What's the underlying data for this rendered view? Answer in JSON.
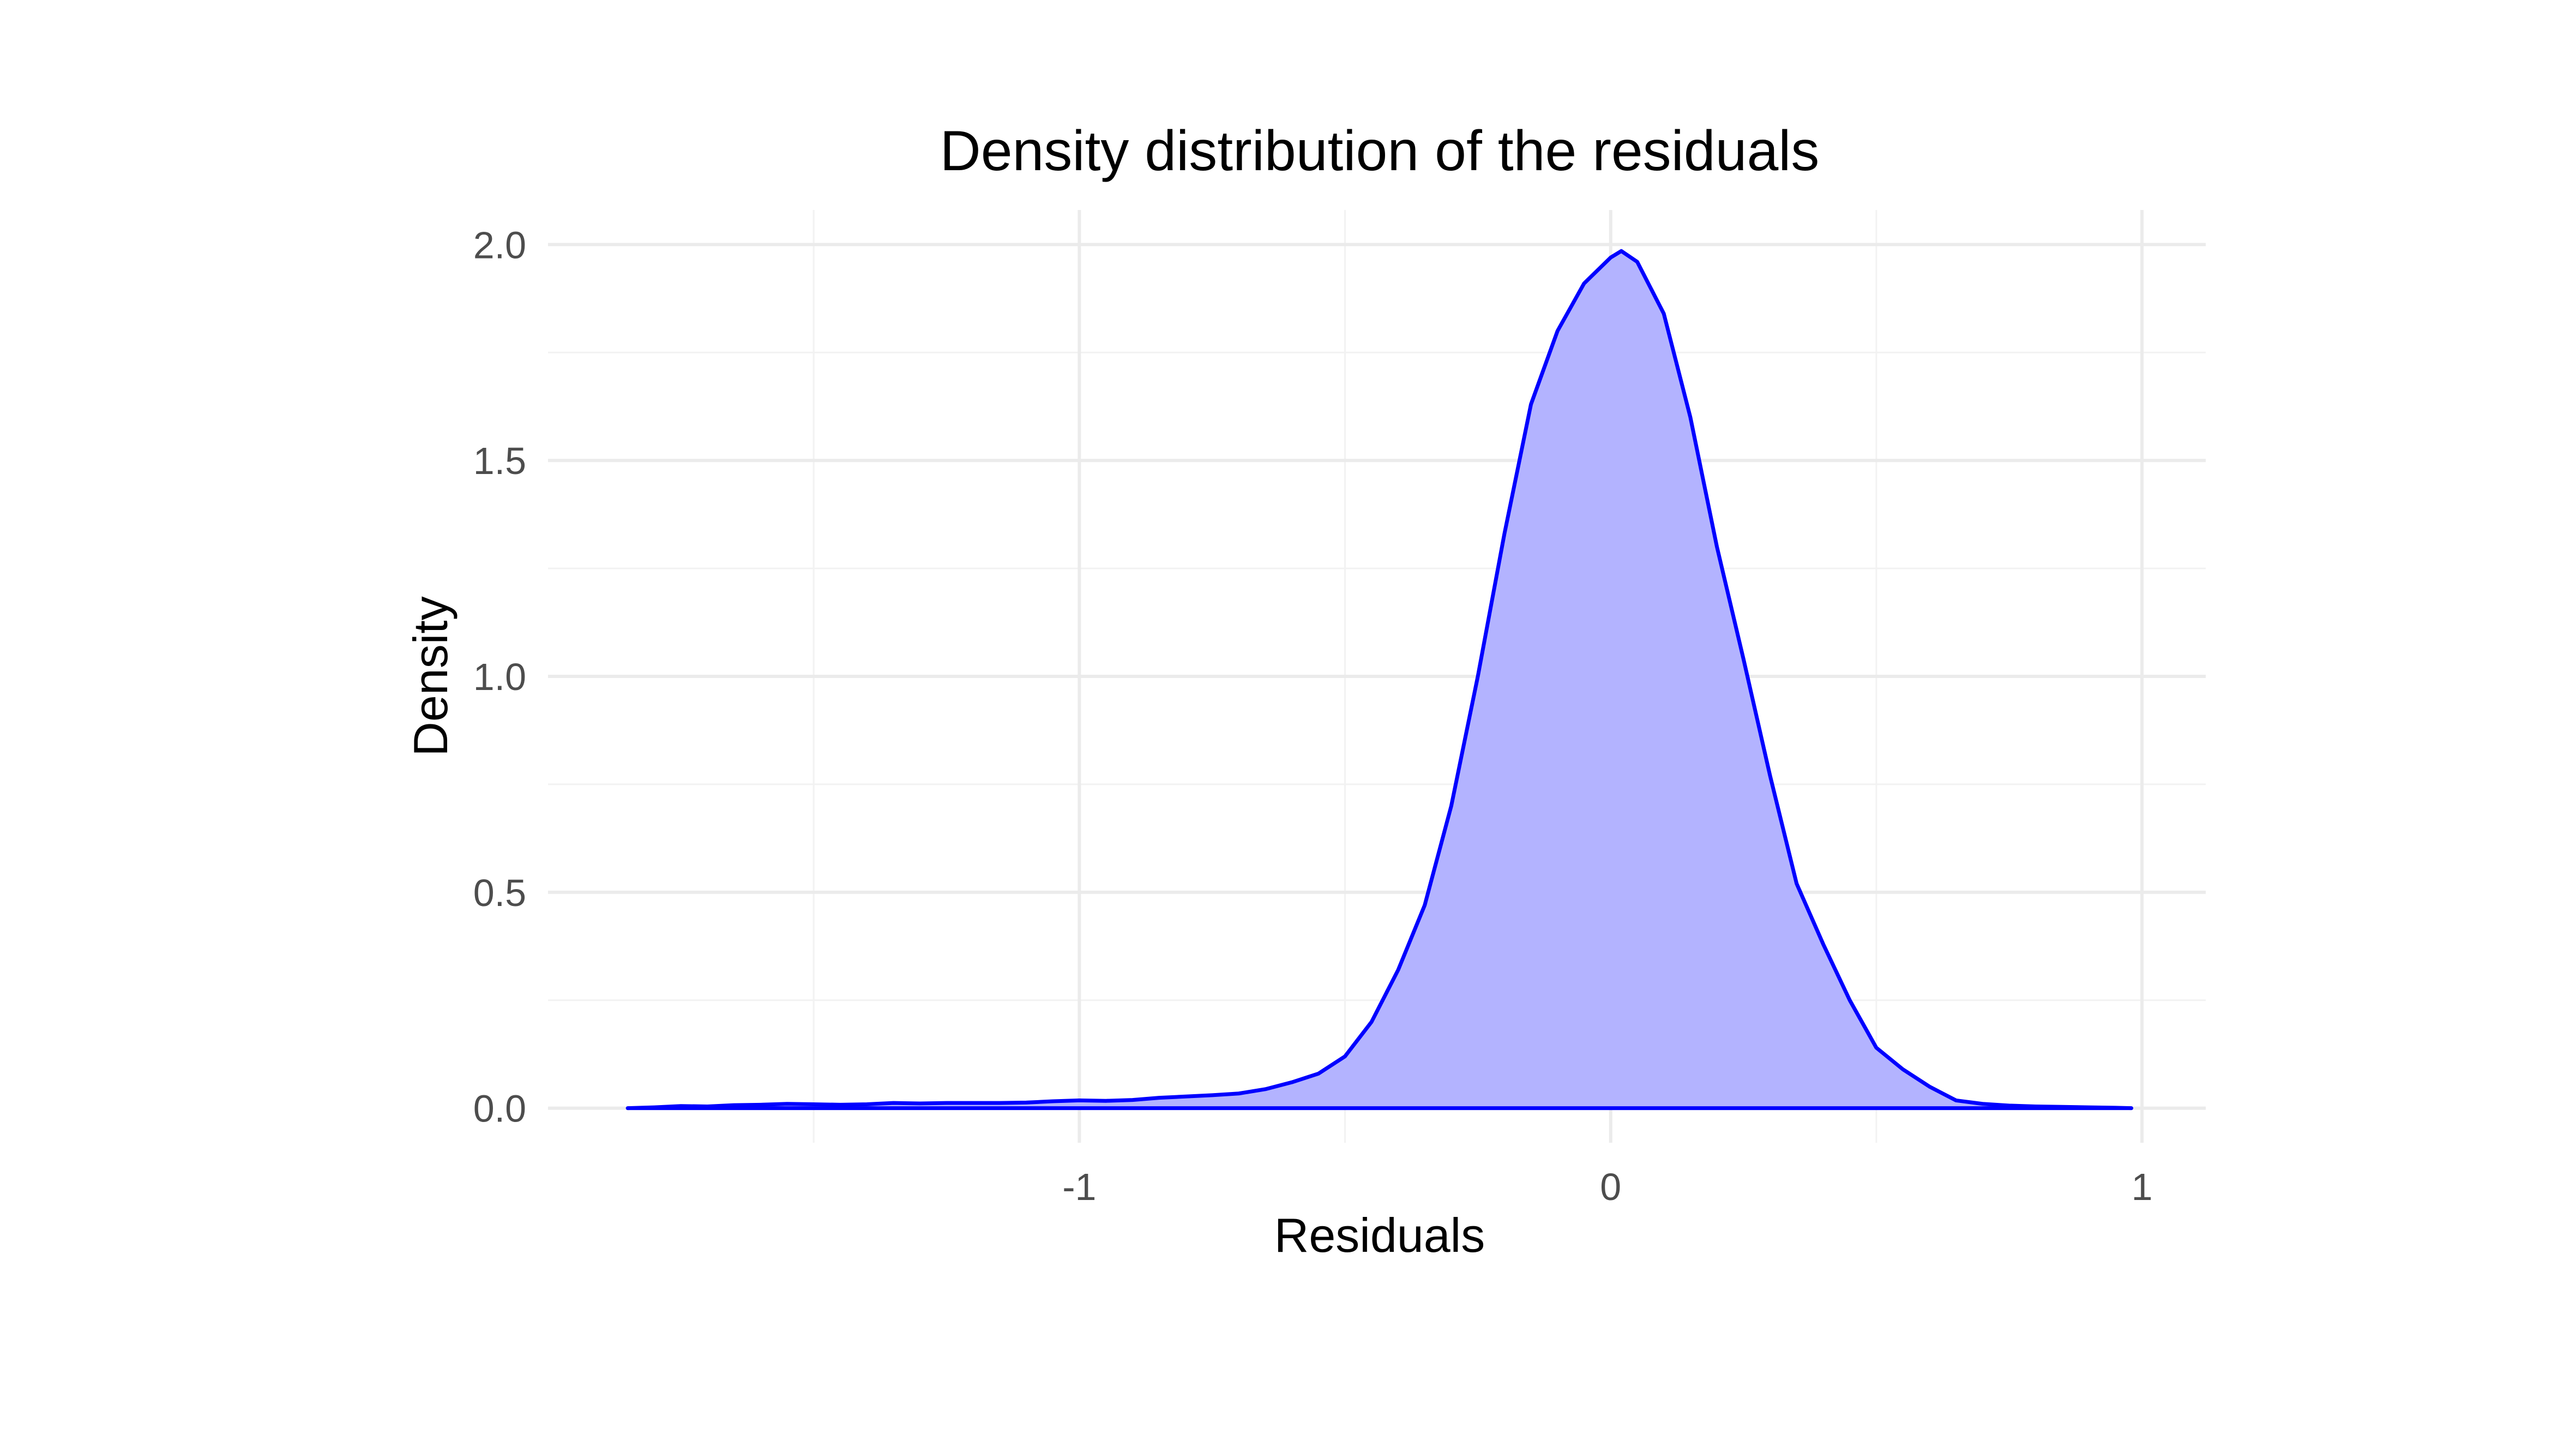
{
  "chart_data": {
    "type": "area",
    "title": "Density distribution of the residuals",
    "xlabel": "Residuals",
    "ylabel": "Density",
    "xlim": [
      -2.0,
      1.12
    ],
    "ylim": [
      -0.08,
      2.08
    ],
    "x_ticks": [
      {
        "value": -1,
        "label": "-1"
      },
      {
        "value": 0,
        "label": "0"
      },
      {
        "value": 1,
        "label": "1"
      }
    ],
    "x_minor_ticks": [
      -1.5,
      -0.5,
      0.5
    ],
    "y_ticks": [
      {
        "value": 0.0,
        "label": "0.0"
      },
      {
        "value": 0.5,
        "label": "0.5"
      },
      {
        "value": 1.0,
        "label": "1.0"
      },
      {
        "value": 1.5,
        "label": "1.5"
      },
      {
        "value": 2.0,
        "label": "2.0"
      }
    ],
    "y_minor_ticks": [
      0.25,
      0.75,
      1.25,
      1.75
    ],
    "grid": true,
    "legend": "none",
    "colors": {
      "line": "#0000ff",
      "fill": "#b3b3ff",
      "grid_major": "#ebebeb",
      "grid_minor": "#f2f2f2"
    },
    "series": [
      {
        "points": [
          [
            -1.85,
            0.0
          ],
          [
            -1.8,
            0.002
          ],
          [
            -1.75,
            0.005
          ],
          [
            -1.7,
            0.004
          ],
          [
            -1.65,
            0.007
          ],
          [
            -1.6,
            0.008
          ],
          [
            -1.55,
            0.01
          ],
          [
            -1.5,
            0.009
          ],
          [
            -1.45,
            0.008
          ],
          [
            -1.4,
            0.009
          ],
          [
            -1.35,
            0.012
          ],
          [
            -1.3,
            0.011
          ],
          [
            -1.25,
            0.012
          ],
          [
            -1.2,
            0.012
          ],
          [
            -1.15,
            0.012
          ],
          [
            -1.1,
            0.013
          ],
          [
            -1.05,
            0.016
          ],
          [
            -1.0,
            0.018
          ],
          [
            -0.95,
            0.017
          ],
          [
            -0.9,
            0.019
          ],
          [
            -0.85,
            0.024
          ],
          [
            -0.8,
            0.027
          ],
          [
            -0.75,
            0.03
          ],
          [
            -0.7,
            0.034
          ],
          [
            -0.65,
            0.044
          ],
          [
            -0.6,
            0.06
          ],
          [
            -0.55,
            0.08
          ],
          [
            -0.5,
            0.12
          ],
          [
            -0.45,
            0.2
          ],
          [
            -0.4,
            0.32
          ],
          [
            -0.35,
            0.47
          ],
          [
            -0.3,
            0.7
          ],
          [
            -0.25,
            1.0
          ],
          [
            -0.2,
            1.33
          ],
          [
            -0.15,
            1.63
          ],
          [
            -0.1,
            1.8
          ],
          [
            -0.05,
            1.91
          ],
          [
            0.0,
            1.97
          ],
          [
            0.02,
            1.985
          ],
          [
            0.05,
            1.96
          ],
          [
            0.1,
            1.84
          ],
          [
            0.15,
            1.6
          ],
          [
            0.2,
            1.3
          ],
          [
            0.25,
            1.04
          ],
          [
            0.3,
            0.77
          ],
          [
            0.35,
            0.52
          ],
          [
            0.4,
            0.38
          ],
          [
            0.45,
            0.25
          ],
          [
            0.5,
            0.14
          ],
          [
            0.55,
            0.09
          ],
          [
            0.6,
            0.05
          ],
          [
            0.65,
            0.018
          ],
          [
            0.7,
            0.01
          ],
          [
            0.75,
            0.006
          ],
          [
            0.8,
            0.004
          ],
          [
            0.85,
            0.003
          ],
          [
            0.9,
            0.002
          ],
          [
            0.95,
            0.001
          ],
          [
            0.98,
            0.0
          ]
        ]
      }
    ]
  }
}
